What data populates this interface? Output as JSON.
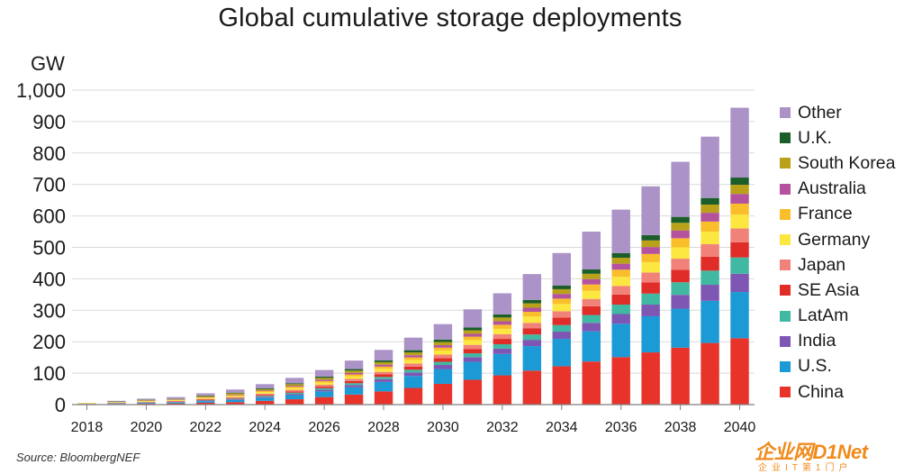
{
  "chart_data": {
    "type": "stacked-bar",
    "title": "Global cumulative storage deployments",
    "ylabel": "GW",
    "ylim": [
      0,
      1000
    ],
    "yticks": [
      "0",
      "100",
      "200",
      "300",
      "400",
      "500",
      "600",
      "700",
      "800",
      "900",
      "1,000"
    ],
    "x": [
      2018,
      2019,
      2020,
      2021,
      2022,
      2023,
      2024,
      2025,
      2026,
      2027,
      2028,
      2029,
      2030,
      2031,
      2032,
      2033,
      2034,
      2035,
      2036,
      2037,
      2038,
      2039,
      2040
    ],
    "xtick_labels": [
      "2018",
      "2020",
      "2022",
      "2024",
      "2026",
      "2028",
      "2030",
      "2032",
      "2034",
      "2036",
      "2038",
      "2040"
    ],
    "grid": true,
    "legend_position": "right",
    "series": [
      {
        "name": "China",
        "color": "#e8332a",
        "values": [
          1,
          2,
          3,
          4,
          6,
          8,
          12,
          17,
          24,
          32,
          42,
          53,
          66,
          79,
          93,
          108,
          122,
          137,
          151,
          166,
          181,
          196,
          211
        ]
      },
      {
        "name": "U.S.",
        "color": "#1b9ad6",
        "values": [
          1,
          2,
          2,
          3,
          5,
          7,
          10,
          13,
          18,
          23,
          30,
          38,
          47,
          57,
          68,
          78,
          87,
          96,
          106,
          115,
          124,
          134,
          147
        ]
      },
      {
        "name": "India",
        "color": "#7e56b3",
        "values": [
          0,
          0,
          1,
          1,
          2,
          2,
          3,
          4,
          5,
          7,
          9,
          11,
          13,
          15,
          17,
          20,
          23,
          27,
          31,
          37,
          44,
          51,
          58
        ]
      },
      {
        "name": "LatAm",
        "color": "#40b8a2",
        "values": [
          0,
          0,
          1,
          1,
          1,
          2,
          3,
          4,
          5,
          6,
          7,
          9,
          10,
          12,
          14,
          17,
          21,
          25,
          30,
          35,
          40,
          45,
          52
        ]
      },
      {
        "name": "SE Asia",
        "color": "#e02d28",
        "values": [
          0,
          1,
          1,
          1,
          2,
          2,
          3,
          4,
          5,
          7,
          8,
          10,
          12,
          14,
          17,
          20,
          24,
          28,
          32,
          36,
          40,
          44,
          48
        ]
      },
      {
        "name": "Japan",
        "color": "#f0827a",
        "values": [
          1,
          1,
          1,
          2,
          2,
          3,
          4,
          5,
          6,
          7,
          8,
          10,
          11,
          13,
          15,
          17,
          20,
          23,
          27,
          31,
          35,
          40,
          44
        ]
      },
      {
        "name": "Germany",
        "color": "#fbe73f",
        "values": [
          1,
          1,
          2,
          2,
          3,
          4,
          5,
          6,
          7,
          8,
          10,
          11,
          13,
          15,
          17,
          20,
          23,
          26,
          29,
          33,
          36,
          40,
          44
        ]
      },
      {
        "name": "France",
        "color": "#f9be2a",
        "values": [
          0,
          1,
          1,
          1,
          2,
          2,
          3,
          4,
          5,
          6,
          7,
          8,
          9,
          11,
          13,
          15,
          17,
          20,
          23,
          26,
          29,
          32,
          35
        ]
      },
      {
        "name": "Australia",
        "color": "#b5529e",
        "values": [
          0,
          0,
          1,
          1,
          1,
          2,
          2,
          3,
          4,
          5,
          6,
          7,
          8,
          9,
          11,
          13,
          15,
          17,
          19,
          22,
          25,
          28,
          31
        ]
      },
      {
        "name": "South Korea",
        "color": "#b9a11a",
        "values": [
          1,
          1,
          2,
          2,
          3,
          4,
          4,
          5,
          6,
          7,
          8,
          9,
          10,
          11,
          12,
          14,
          15,
          17,
          19,
          21,
          24,
          26,
          29
        ]
      },
      {
        "name": "U.K.",
        "color": "#1b5e2a",
        "values": [
          0,
          1,
          1,
          1,
          2,
          2,
          3,
          3,
          4,
          5,
          6,
          7,
          8,
          9,
          10,
          11,
          12,
          14,
          15,
          17,
          19,
          21,
          23
        ]
      },
      {
        "name": "Other",
        "color": "#ab93c7",
        "values": [
          0,
          2,
          3,
          5,
          7,
          10,
          13,
          17,
          21,
          27,
          33,
          40,
          49,
          58,
          67,
          82,
          103,
          120,
          138,
          155,
          175,
          195,
          222
        ]
      }
    ]
  },
  "source": "Source: BloombergNEF",
  "watermark": {
    "main": "企业网D1Net",
    "sub": "企业IT第1门户"
  }
}
